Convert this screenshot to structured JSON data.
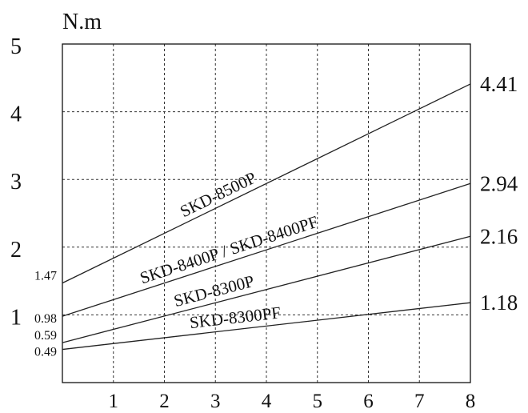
{
  "chart_data": {
    "type": "line",
    "ylabel": "N.m",
    "xlim": [
      0,
      8
    ],
    "ylim": [
      0,
      5
    ],
    "grid": true,
    "x_ticks": [
      "1",
      "2",
      "3",
      "4",
      "5",
      "6",
      "7",
      "8"
    ],
    "y_ticks": [
      "1",
      "2",
      "3",
      "4",
      "5"
    ],
    "series": [
      {
        "name": "SKD-8500P",
        "x": [
          0,
          8
        ],
        "values": [
          1.47,
          4.41
        ],
        "start_label": "1.47",
        "end_label": "4.41"
      },
      {
        "name": "SKD-8400P / SKD-8400PF",
        "x": [
          0,
          8
        ],
        "values": [
          0.98,
          2.94
        ],
        "start_label": "0.98",
        "end_label": "2.94"
      },
      {
        "name": "SKD-8300P",
        "x": [
          0,
          8
        ],
        "values": [
          0.59,
          2.16
        ],
        "start_label": "0.59",
        "end_label": "2.16"
      },
      {
        "name": "SKD-8300PF",
        "x": [
          0,
          8
        ],
        "values": [
          0.49,
          1.18
        ],
        "start_label": "0.49",
        "end_label": "1.18"
      }
    ]
  }
}
